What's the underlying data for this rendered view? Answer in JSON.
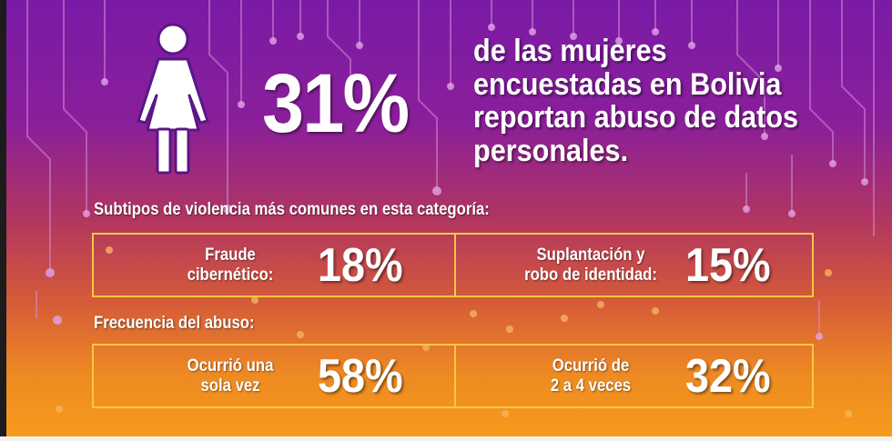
{
  "hero": {
    "percent": "31%",
    "headline": "de las mujeres encuestadas en Bolivia reportan abuso de datos personales."
  },
  "subtypes": {
    "title": "Subtipos de violencia más comunes en esta categoría:",
    "items": [
      {
        "label_line1": "Fraude",
        "label_line2": "cibernético:",
        "value": "18%"
      },
      {
        "label_line1": "Suplantación y",
        "label_line2": "robo de identidad:",
        "value": "15%"
      }
    ]
  },
  "frequency": {
    "title": "Frecuencia del abuso:",
    "items": [
      {
        "label_line1": "Ocurrió una",
        "label_line2": "sola vez",
        "value": "58%"
      },
      {
        "label_line1": "Ocurrió de",
        "label_line2": "2 a 4 veces",
        "value": "32%"
      }
    ]
  },
  "colors": {
    "purple": "#7a1aa6",
    "orange": "#f79c1a",
    "box_border": "#f8c844",
    "icon_purple": "#5a1785"
  },
  "icons": [
    "woman-icon"
  ]
}
